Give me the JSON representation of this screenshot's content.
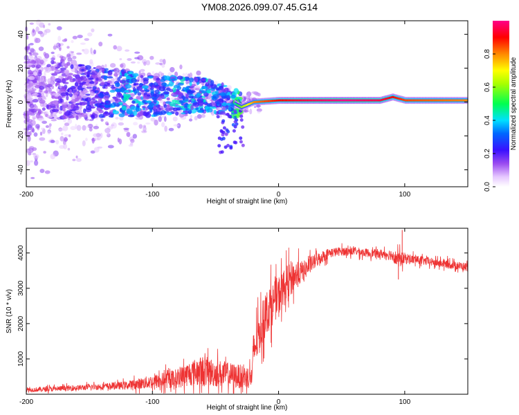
{
  "title": "YM08.2026.099.07.45.G14",
  "chart_data": [
    {
      "type": "heatmap",
      "xlabel": "Height of straight line (km)",
      "ylabel": "Frequency (Hz)",
      "xlim": [
        -200,
        150
      ],
      "ylim": [
        -50,
        48
      ],
      "xticks": [
        -200,
        -100,
        0,
        100
      ],
      "yticks": [
        -40,
        -20,
        0,
        20,
        40
      ],
      "colorbar": {
        "label": "Normalized spectral amplitude",
        "range": [
          0,
          1
        ],
        "ticks": [
          "0.0",
          "0.2",
          "0.4",
          "0.6",
          "0.8"
        ]
      },
      "ridge": [
        {
          "x": -200,
          "f": 8,
          "amp": 0.12
        },
        {
          "x": -150,
          "f": 6,
          "amp": 0.2
        },
        {
          "x": -120,
          "f": 5,
          "amp": 0.35
        },
        {
          "x": -100,
          "f": 4,
          "amp": 0.3
        },
        {
          "x": -80,
          "f": 4,
          "amp": 0.35
        },
        {
          "x": -60,
          "f": 4,
          "amp": 0.35
        },
        {
          "x": -40,
          "f": 1,
          "amp": 0.3
        },
        {
          "x": -30,
          "f": -3,
          "amp": 0.6
        },
        {
          "x": -20,
          "f": 0,
          "amp": 0.8
        },
        {
          "x": 0,
          "f": 1,
          "amp": 0.9
        },
        {
          "x": 20,
          "f": 1,
          "amp": 0.95
        },
        {
          "x": 50,
          "f": 1,
          "amp": 1.0
        },
        {
          "x": 80,
          "f": 1,
          "amp": 0.95
        },
        {
          "x": 90,
          "f": 3,
          "amp": 0.9
        },
        {
          "x": 100,
          "f": 1,
          "amp": 0.85
        },
        {
          "x": 150,
          "f": 1,
          "amp": 0.8
        }
      ]
    },
    {
      "type": "line",
      "xlabel": "Height of straight line (km)",
      "ylabel": "SNR (10 * v/v)",
      "xlim": [
        -200,
        150
      ],
      "ylim": [
        0,
        4700
      ],
      "xticks": [
        -200,
        -100,
        0,
        100
      ],
      "yticks": [
        1000,
        2000,
        3000,
        4000
      ],
      "color": "#ee3333",
      "series": [
        {
          "name": "SNR",
          "x": [
            -200,
            -180,
            -160,
            -140,
            -120,
            -110,
            -100,
            -90,
            -80,
            -70,
            -60,
            -50,
            -40,
            -30,
            -21,
            -20,
            -10,
            0,
            10,
            20,
            30,
            40,
            50,
            60,
            70,
            80,
            90,
            95,
            100,
            110,
            120,
            130,
            140,
            150
          ],
          "y": [
            120,
            150,
            180,
            220,
            250,
            300,
            350,
            400,
            450,
            600,
            650,
            600,
            550,
            500,
            480,
            1200,
            2300,
            2800,
            3300,
            3500,
            3800,
            4000,
            4050,
            4050,
            4000,
            3980,
            3950,
            3800,
            3850,
            3800,
            3750,
            3700,
            3650,
            3600
          ],
          "spread": [
            80,
            90,
            100,
            110,
            150,
            200,
            250,
            300,
            350,
            450,
            550,
            500,
            450,
            420,
            400,
            700,
            800,
            700,
            600,
            350,
            250,
            180,
            150,
            150,
            150,
            150,
            200,
            300,
            200,
            150,
            150,
            150,
            150,
            150
          ]
        }
      ],
      "annotations": [
        {
          "x": 98,
          "y": 4650,
          "note": "spike"
        },
        {
          "x": 95,
          "y": 3250,
          "note": "dip"
        }
      ]
    }
  ]
}
